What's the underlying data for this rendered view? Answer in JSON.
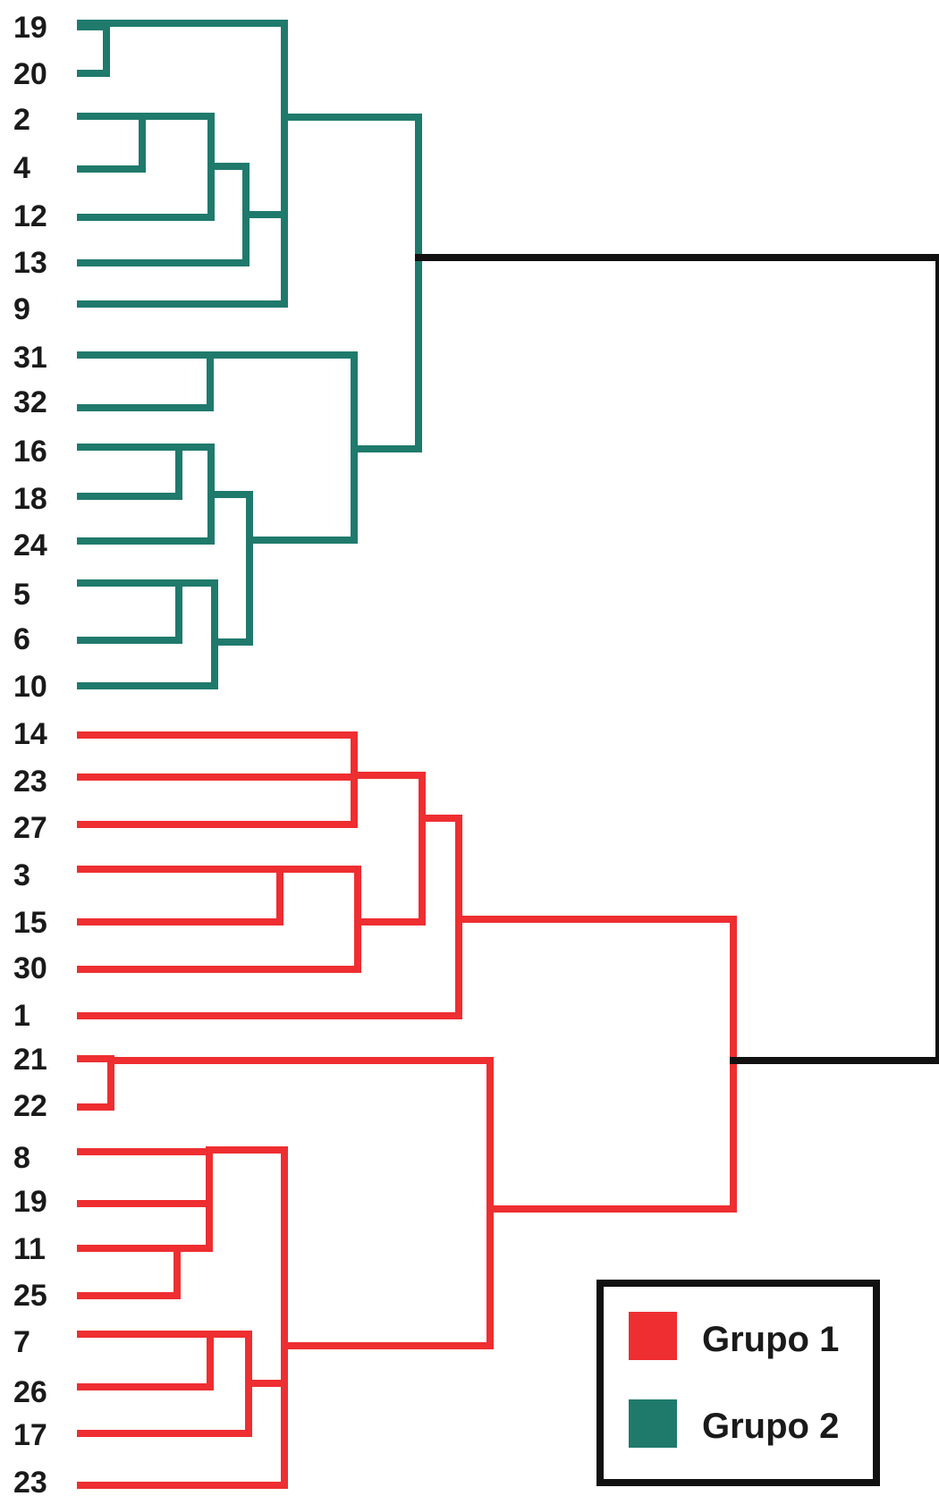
{
  "colors": {
    "grupo1": "#ee2e31",
    "grupo2": "#1f7a6c",
    "root": "#111111"
  },
  "leaves": [
    "19",
    "20",
    "2",
    "4",
    "12",
    "13",
    "9",
    "31",
    "32",
    "16",
    "18",
    "24",
    "5",
    "6",
    "10",
    "14",
    "23",
    "27",
    "3",
    "15",
    "30",
    "1",
    "21",
    "22",
    "8",
    "19",
    "11",
    "25",
    "7",
    "26",
    "17",
    "23"
  ],
  "legend": {
    "items": [
      {
        "label": "Grupo 1",
        "color": "#ee2e31"
      },
      {
        "label": "Grupo 2",
        "color": "#1f7a6c"
      }
    ]
  }
}
